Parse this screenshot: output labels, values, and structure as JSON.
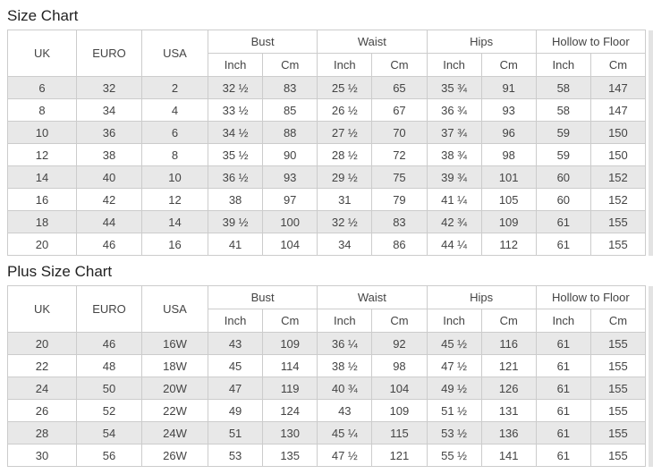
{
  "colors": {
    "row_shade": "#e8e8e8",
    "border": "#cccccc",
    "text": "#444444",
    "title": "#222222",
    "right_strip": "#e3e3e3"
  },
  "tables": [
    {
      "title": "Size Chart",
      "size_headers": [
        "UK",
        "EURO",
        "USA"
      ],
      "groups": [
        {
          "label": "Bust",
          "sub": [
            "Inch",
            "Cm"
          ]
        },
        {
          "label": "Waist",
          "sub": [
            "Inch",
            "Cm"
          ]
        },
        {
          "label": "Hips",
          "sub": [
            "Inch",
            "Cm"
          ]
        },
        {
          "label": "Hollow to Floor",
          "sub": [
            "Inch",
            "Cm"
          ]
        }
      ],
      "rows": [
        [
          "6",
          "32",
          "2",
          "32 ½",
          "83",
          "25 ½",
          "65",
          "35 ¾",
          "91",
          "58",
          "147"
        ],
        [
          "8",
          "34",
          "4",
          "33 ½",
          "85",
          "26 ½",
          "67",
          "36 ¾",
          "93",
          "58",
          "147"
        ],
        [
          "10",
          "36",
          "6",
          "34 ½",
          "88",
          "27 ½",
          "70",
          "37 ¾",
          "96",
          "59",
          "150"
        ],
        [
          "12",
          "38",
          "8",
          "35 ½",
          "90",
          "28 ½",
          "72",
          "38 ¾",
          "98",
          "59",
          "150"
        ],
        [
          "14",
          "40",
          "10",
          "36 ½",
          "93",
          "29 ½",
          "75",
          "39 ¾",
          "101",
          "60",
          "152"
        ],
        [
          "16",
          "42",
          "12",
          "38",
          "97",
          "31",
          "79",
          "41 ¼",
          "105",
          "60",
          "152"
        ],
        [
          "18",
          "44",
          "14",
          "39 ½",
          "100",
          "32 ½",
          "83",
          "42 ¾",
          "109",
          "61",
          "155"
        ],
        [
          "20",
          "46",
          "16",
          "41",
          "104",
          "34",
          "86",
          "44 ¼",
          "112",
          "61",
          "155"
        ]
      ]
    },
    {
      "title": "Plus Size Chart",
      "size_headers": [
        "UK",
        "EURO",
        "USA"
      ],
      "groups": [
        {
          "label": "Bust",
          "sub": [
            "Inch",
            "Cm"
          ]
        },
        {
          "label": "Waist",
          "sub": [
            "Inch",
            "Cm"
          ]
        },
        {
          "label": "Hips",
          "sub": [
            "Inch",
            "Cm"
          ]
        },
        {
          "label": "Hollow to Floor",
          "sub": [
            "Inch",
            "Cm"
          ]
        }
      ],
      "rows": [
        [
          "20",
          "46",
          "16W",
          "43",
          "109",
          "36 ¼",
          "92",
          "45 ½",
          "116",
          "61",
          "155"
        ],
        [
          "22",
          "48",
          "18W",
          "45",
          "114",
          "38 ½",
          "98",
          "47 ½",
          "121",
          "61",
          "155"
        ],
        [
          "24",
          "50",
          "20W",
          "47",
          "119",
          "40 ¾",
          "104",
          "49 ½",
          "126",
          "61",
          "155"
        ],
        [
          "26",
          "52",
          "22W",
          "49",
          "124",
          "43",
          "109",
          "51 ½",
          "131",
          "61",
          "155"
        ],
        [
          "28",
          "54",
          "24W",
          "51",
          "130",
          "45 ¼",
          "115",
          "53 ½",
          "136",
          "61",
          "155"
        ],
        [
          "30",
          "56",
          "26W",
          "53",
          "135",
          "47 ½",
          "121",
          "55 ½",
          "141",
          "61",
          "155"
        ]
      ]
    }
  ]
}
